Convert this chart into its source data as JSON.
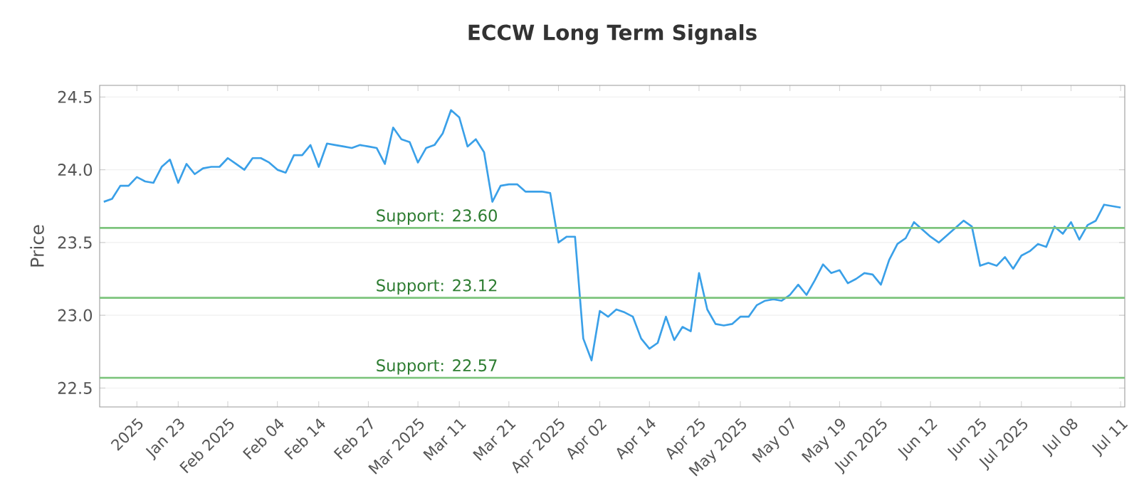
{
  "chart_data": {
    "type": "line",
    "title": "ECCW Long Term Signals",
    "ylabel": "Price",
    "categories": [
      null,
      null,
      null,
      null,
      "2025",
      null,
      null,
      null,
      null,
      "Jan 23",
      null,
      null,
      null,
      null,
      null,
      "Feb 2025",
      null,
      null,
      null,
      null,
      null,
      "Feb 04",
      null,
      null,
      null,
      null,
      "Feb 14",
      null,
      null,
      null,
      null,
      null,
      "Feb 27",
      null,
      null,
      null,
      null,
      null,
      "Mar 2025",
      null,
      null,
      null,
      null,
      "Mar 11",
      null,
      null,
      null,
      null,
      null,
      "Mar 21",
      null,
      null,
      null,
      null,
      null,
      "Apr 2025",
      null,
      null,
      null,
      null,
      "Apr 02",
      null,
      null,
      null,
      null,
      null,
      "Apr 14",
      null,
      null,
      null,
      null,
      null,
      "Apr 25",
      null,
      null,
      null,
      null,
      "May 2025",
      null,
      null,
      null,
      null,
      null,
      "May 07",
      null,
      null,
      null,
      null,
      null,
      "May 19",
      null,
      null,
      null,
      null,
      "Jun 2025",
      null,
      null,
      null,
      null,
      null,
      "Jun 12",
      null,
      null,
      null,
      null,
      null,
      "Jun 25",
      null,
      null,
      null,
      null,
      "Jul 2025",
      null,
      null,
      null,
      null,
      null,
      "Jul 08",
      null,
      null,
      null,
      null,
      null,
      "Jul 11"
    ],
    "series": [
      {
        "color": "#3aa0e8",
        "values": [
          23.78,
          23.8,
          23.89,
          23.89,
          23.95,
          23.92,
          23.91,
          24.02,
          24.07,
          23.91,
          24.04,
          23.97,
          24.01,
          24.02,
          24.02,
          24.08,
          24.04,
          24.0,
          24.08,
          24.08,
          24.05,
          24.0,
          23.98,
          24.1,
          24.1,
          24.17,
          24.02,
          24.18,
          24.17,
          24.16,
          24.15,
          24.17,
          24.16,
          24.15,
          24.04,
          24.29,
          24.21,
          24.19,
          24.05,
          24.15,
          24.17,
          24.25,
          24.41,
          24.36,
          24.16,
          24.21,
          24.12,
          23.78,
          23.89,
          23.9,
          23.9,
          23.85,
          23.85,
          23.85,
          23.84,
          23.5,
          23.54,
          23.54,
          22.84,
          22.69,
          23.03,
          22.99,
          23.04,
          23.02,
          22.99,
          22.84,
          22.77,
          22.81,
          22.99,
          22.83,
          22.92,
          22.89,
          23.29,
          23.04,
          22.94,
          22.93,
          22.94,
          22.99,
          22.99,
          23.07,
          23.1,
          23.11,
          23.1,
          23.14,
          23.21,
          23.14,
          23.24,
          23.35,
          23.29,
          23.31,
          23.22,
          23.25,
          23.29,
          23.28,
          23.21,
          23.38,
          23.49,
          23.53,
          23.64,
          23.59,
          23.54,
          23.5,
          23.55,
          23.6,
          23.65,
          23.61,
          23.34,
          23.36,
          23.34,
          23.4,
          23.32,
          23.41,
          23.44,
          23.49,
          23.47,
          23.61,
          23.56,
          23.64,
          23.52,
          23.62,
          23.65,
          23.76,
          23.75,
          23.74
        ]
      }
    ],
    "ylim": [
      22.37,
      24.58
    ],
    "yticks": [
      {
        "value": 22.5,
        "label": "22.5"
      },
      {
        "value": 23,
        "label": "23.0"
      },
      {
        "value": 23.5,
        "label": "23.5"
      },
      {
        "value": 24,
        "label": "24.0"
      },
      {
        "value": 24.5,
        "label": "24.5"
      }
    ],
    "grid": "y",
    "marker": "none",
    "line_style": "solid",
    "ref_lines": [
      {
        "axis": "y",
        "value": 23.6,
        "label": "Support: 23.60",
        "color": "#7cc47c"
      },
      {
        "axis": "y",
        "value": 23.12,
        "label": "Support: 23.12",
        "color": "#7cc47c"
      },
      {
        "axis": "y",
        "value": 22.57,
        "label": "Support: 22.57",
        "color": "#7cc47c"
      }
    ]
  }
}
